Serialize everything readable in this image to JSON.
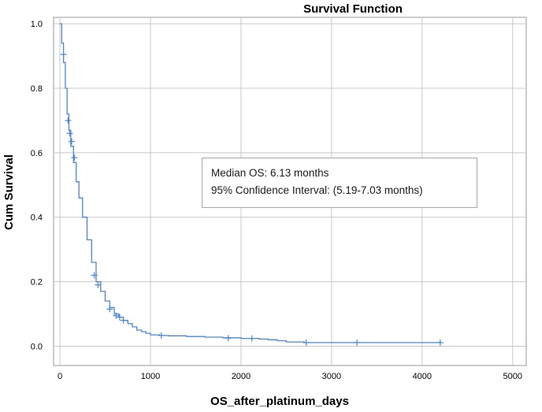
{
  "chart_data": {
    "type": "line",
    "title": "Survival Function",
    "xlabel": "OS_after_platinum_days",
    "ylabel": "Cum Survival",
    "xlim": [
      -70,
      5150
    ],
    "ylim": [
      -0.06,
      1.02
    ],
    "x_ticks": [
      "0",
      "1000",
      "2000",
      "3000",
      "4000",
      "5000"
    ],
    "y_ticks": [
      "0.0",
      "0.2",
      "0.4",
      "0.6",
      "0.8",
      "1.0"
    ],
    "grid": true,
    "line_color": "#4a86d8",
    "series": [
      {
        "x": [
          0,
          20,
          40,
          60,
          80,
          100,
          120,
          150,
          180,
          210,
          250,
          300,
          350,
          400,
          450,
          500,
          550,
          600,
          650,
          700,
          750,
          800,
          850,
          900,
          950,
          1000,
          1100,
          1200,
          1400,
          1600,
          1800,
          2000,
          2200,
          2300,
          2400,
          2500,
          2700,
          3000,
          3300,
          3600,
          4000,
          4210
        ],
        "y": [
          1.0,
          0.94,
          0.88,
          0.8,
          0.72,
          0.67,
          0.62,
          0.57,
          0.51,
          0.46,
          0.4,
          0.33,
          0.26,
          0.2,
          0.17,
          0.14,
          0.12,
          0.1,
          0.09,
          0.08,
          0.07,
          0.06,
          0.05,
          0.045,
          0.04,
          0.035,
          0.033,
          0.032,
          0.03,
          0.028,
          0.026,
          0.024,
          0.022,
          0.02,
          0.017,
          0.013,
          0.011,
          0.011,
          0.011,
          0.011,
          0.011,
          0.011
        ]
      }
    ],
    "censored": {
      "x": [
        40,
        90,
        110,
        130,
        160,
        380,
        420,
        550,
        620,
        660,
        700,
        1120,
        1860,
        2120,
        2720,
        3280,
        4200
      ],
      "y": [
        0.905,
        0.7,
        0.66,
        0.635,
        0.585,
        0.22,
        0.19,
        0.115,
        0.095,
        0.09,
        0.08,
        0.033,
        0.025,
        0.024,
        0.011,
        0.011,
        0.011
      ]
    }
  },
  "annotation": {
    "line1": "Median OS: 6.13 months",
    "line2": "95% Confidence Interval: (5.19-7.03 months)"
  }
}
